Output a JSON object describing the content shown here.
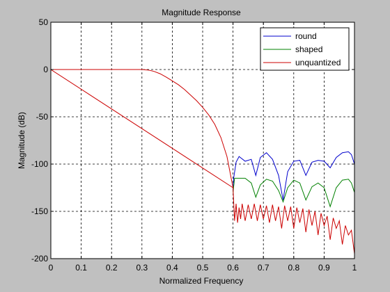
{
  "chart_data": {
    "type": "line",
    "title": "Magnitude Response",
    "xlabel": "Normalized Frequency",
    "ylabel": "Magnitude (dB)",
    "xlim": [
      0,
      1
    ],
    "ylim": [
      -200,
      50
    ],
    "xticks": [
      0,
      0.1,
      0.2,
      0.3,
      0.4,
      0.5,
      0.6,
      0.7,
      0.8,
      0.9,
      1
    ],
    "xtick_labels": [
      "0",
      "0.1",
      "0.2",
      "0.3",
      "0.4",
      "0.5",
      "0.6",
      "0.7",
      "0.8",
      "0.9",
      "1"
    ],
    "yticks": [
      50,
      0,
      -50,
      -100,
      -150,
      -200
    ],
    "ytick_labels": [
      "50",
      "0",
      "-50",
      "-100",
      "-150",
      "-200"
    ],
    "grid": true,
    "grid_style": "dashed",
    "legend_position": "top-right",
    "passband": {
      "x": [
        0,
        0.3,
        0.32,
        0.34,
        0.36,
        0.38,
        0.4,
        0.42,
        0.44,
        0.46,
        0.48,
        0.5,
        0.52,
        0.54,
        0.56,
        0.58,
        0.6
      ],
      "y": [
        0,
        0,
        -0.5,
        -2,
        -4.5,
        -8,
        -12,
        -16,
        -21,
        -27,
        -33,
        -40,
        -48,
        -58,
        -72,
        -92,
        -125
      ]
    },
    "series": [
      {
        "name": "round",
        "color": "#0000cc",
        "x": [
          0.6,
          0.602,
          0.61,
          0.62,
          0.64,
          0.66,
          0.675,
          0.69,
          0.71,
          0.73,
          0.75,
          0.765,
          0.78,
          0.8,
          0.82,
          0.84,
          0.86,
          0.88,
          0.9,
          0.92,
          0.94,
          0.96,
          0.98,
          0.99,
          1,
          1
        ],
        "y": [
          -128,
          -115,
          -98,
          -92,
          -97,
          -95,
          -112,
          -93,
          -88,
          -95,
          -112,
          -138,
          -108,
          -97,
          -96,
          -112,
          -98,
          -96,
          -97,
          -104,
          -93,
          -88,
          -87,
          -90,
          -100,
          -135
        ]
      },
      {
        "name": "shaped",
        "color": "#008000",
        "x": [
          0.6,
          0.605,
          0.62,
          0.64,
          0.66,
          0.675,
          0.69,
          0.71,
          0.73,
          0.75,
          0.765,
          0.78,
          0.8,
          0.82,
          0.84,
          0.86,
          0.88,
          0.9,
          0.92,
          0.94,
          0.96,
          0.98,
          0.99,
          1,
          1
        ],
        "y": [
          -130,
          -115,
          -115,
          -115,
          -120,
          -135,
          -122,
          -116,
          -118,
          -128,
          -140,
          -125,
          -117,
          -120,
          -138,
          -124,
          -120,
          -125,
          -145,
          -125,
          -117,
          -116,
          -120,
          -130,
          -170
        ]
      },
      {
        "name": "unquantized",
        "color": "#cc0000",
        "x": [
          0,
          0.6,
          0.605,
          0.61,
          0.615,
          0.62,
          0.625,
          0.63,
          0.64,
          0.65,
          0.66,
          0.67,
          0.68,
          0.69,
          0.7,
          0.71,
          0.72,
          0.73,
          0.74,
          0.75,
          0.76,
          0.77,
          0.78,
          0.79,
          0.8,
          0.81,
          0.82,
          0.83,
          0.84,
          0.85,
          0.86,
          0.87,
          0.88,
          0.89,
          0.9,
          0.91,
          0.92,
          0.93,
          0.94,
          0.95,
          0.96,
          0.97,
          0.98,
          0.99,
          1
        ],
        "y": [
          0,
          -125,
          -160,
          -142,
          -162,
          -146,
          -158,
          -142,
          -160,
          -143,
          -158,
          -142,
          -160,
          -143,
          -158,
          -144,
          -162,
          -143,
          -160,
          -145,
          -168,
          -144,
          -160,
          -145,
          -168,
          -146,
          -162,
          -147,
          -172,
          -148,
          -165,
          -150,
          -175,
          -152,
          -165,
          -155,
          -180,
          -157,
          -168,
          -160,
          -185,
          -165,
          -175,
          -170,
          -195
        ]
      }
    ]
  }
}
